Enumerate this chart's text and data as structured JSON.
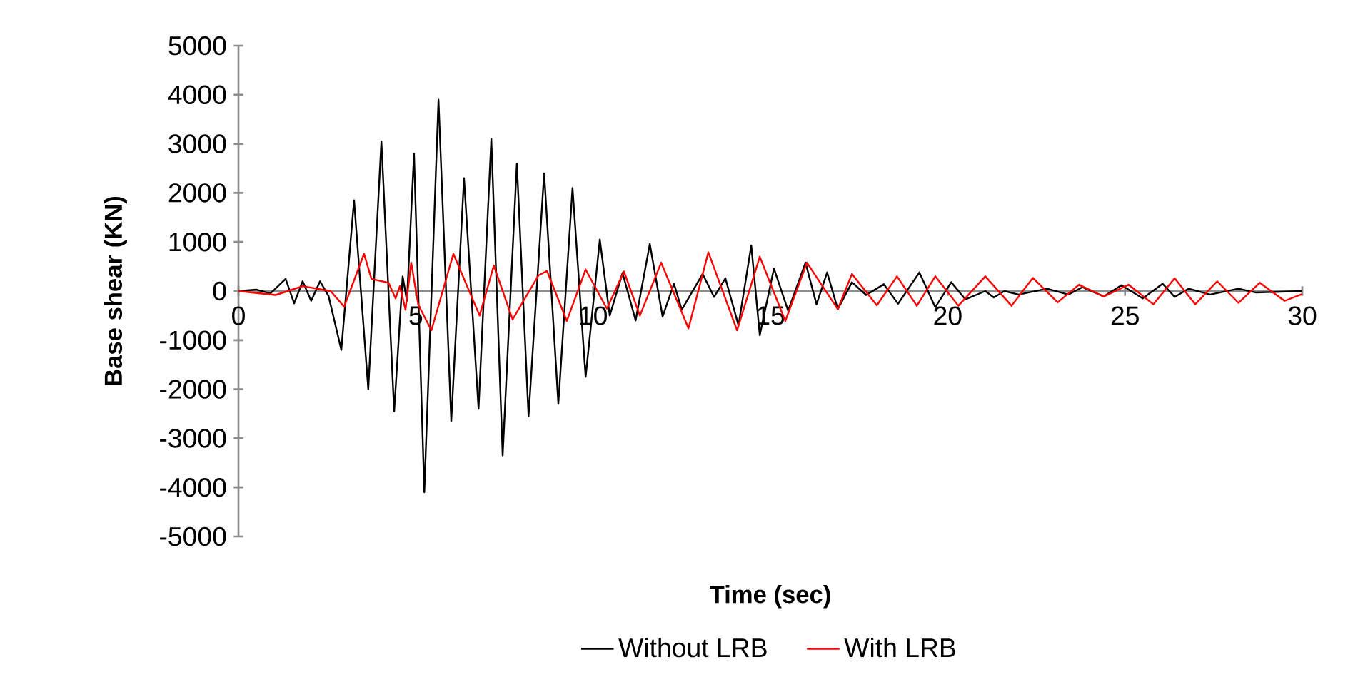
{
  "chart_data": {
    "type": "line",
    "xlabel": "Time (sec)",
    "ylabel": "Base shear (KN)",
    "xlim": [
      0,
      30
    ],
    "xticks": [
      0,
      5,
      10,
      15,
      20,
      25,
      30
    ],
    "ylim": [
      -5000,
      5000
    ],
    "yticks": [
      -5000,
      -4000,
      -3000,
      -2000,
      -1000,
      0,
      1000,
      2000,
      3000,
      4000,
      5000
    ],
    "legend": "bottom",
    "grid": false,
    "marker": "none",
    "line_style": "solid",
    "series": [
      {
        "name": "Without LRB",
        "color": "#000000",
        "x": [
          0,
          0.5,
          0.9,
          1.33,
          1.57,
          1.81,
          2.05,
          2.3,
          2.54,
          2.9,
          3.26,
          3.66,
          4.03,
          4.39,
          4.63,
          4.75,
          4.95,
          5.24,
          5.64,
          6.0,
          6.36,
          6.77,
          7.13,
          7.45,
          7.85,
          8.18,
          8.62,
          9.02,
          9.42,
          9.79,
          10.19,
          10.47,
          10.83,
          11.2,
          11.6,
          11.96,
          12.28,
          12.5,
          13.09,
          13.41,
          13.73,
          14.1,
          14.46,
          14.7,
          15.1,
          15.5,
          15.99,
          16.3,
          16.6,
          16.9,
          17.3,
          17.7,
          18.2,
          18.6,
          19.2,
          19.65,
          20.1,
          20.5,
          21.06,
          21.3,
          21.6,
          22.0,
          22.8,
          23.4,
          23.8,
          24.4,
          24.9,
          25.5,
          26.06,
          26.4,
          26.8,
          27.4,
          28.2,
          28.7,
          30
        ],
        "values": [
          0,
          30,
          -50,
          250,
          -250,
          200,
          -200,
          200,
          -100,
          -1200,
          1850,
          -2000,
          3050,
          -2450,
          300,
          -200,
          2800,
          -4100,
          3900,
          -2650,
          2300,
          -2400,
          3100,
          -3350,
          2600,
          -2550,
          2400,
          -2300,
          2100,
          -1750,
          1050,
          -500,
          370,
          -600,
          960,
          -520,
          150,
          -380,
          350,
          -120,
          260,
          -700,
          930,
          -900,
          460,
          -400,
          580,
          -270,
          380,
          -370,
          180,
          -80,
          140,
          -260,
          380,
          -330,
          180,
          -170,
          0,
          -130,
          0,
          -70,
          50,
          -70,
          80,
          -110,
          120,
          -150,
          150,
          -120,
          50,
          -70,
          50,
          -30,
          0
        ]
      },
      {
        "name": "With LRB",
        "color": "#ff0000",
        "x": [
          0,
          1.05,
          1.81,
          2.6,
          2.98,
          3.54,
          3.75,
          4.23,
          4.43,
          4.55,
          4.71,
          4.87,
          5.07,
          5.44,
          6.06,
          6.8,
          7.2,
          7.73,
          8.46,
          8.7,
          9.26,
          9.79,
          10.39,
          10.87,
          11.32,
          11.92,
          12.69,
          13.25,
          14.06,
          14.7,
          15.42,
          16.03,
          16.9,
          17.3,
          18.0,
          18.57,
          19.13,
          19.65,
          20.3,
          21.06,
          21.8,
          22.4,
          23.1,
          23.7,
          24.4,
          25.1,
          25.8,
          26.4,
          26.98,
          27.6,
          28.2,
          28.8,
          29.5,
          30
        ],
        "values": [
          0,
          -80,
          100,
          0,
          -320,
          760,
          250,
          170,
          -150,
          100,
          -380,
          580,
          -280,
          -800,
          760,
          -500,
          520,
          -580,
          320,
          410,
          -610,
          440,
          -360,
          400,
          -500,
          580,
          -760,
          790,
          -800,
          700,
          -610,
          580,
          -370,
          350,
          -290,
          300,
          -300,
          300,
          -300,
          300,
          -300,
          270,
          -230,
          130,
          -110,
          130,
          -270,
          260,
          -270,
          200,
          -240,
          170,
          -200,
          -60
        ]
      }
    ]
  }
}
